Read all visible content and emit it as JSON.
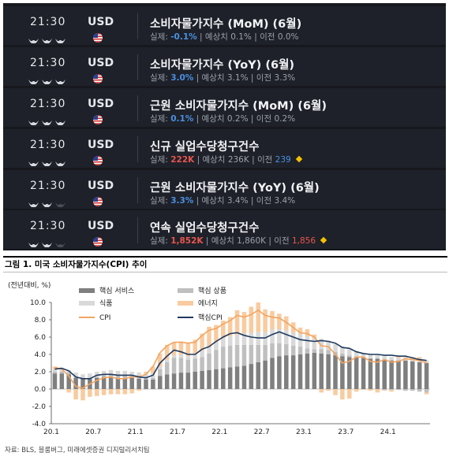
{
  "calendar": {
    "events": [
      {
        "time": "21:30",
        "currency": "USD",
        "title": "소비자물가지수 (MoM) (6월)",
        "impact": 3,
        "actual_label": "실제:",
        "actual": "-0.1%",
        "actual_color": "#4a90e2",
        "forecast_label": "| 예상치",
        "forecast": "0.1%",
        "previous_label": "| 이전",
        "previous": "0.0%",
        "previous_color": "#9aa0aa",
        "diamond": false
      },
      {
        "time": "21:30",
        "currency": "USD",
        "title": "소비자물가지수 (YoY) (6월)",
        "impact": 3,
        "actual_label": "실제:",
        "actual": "3.0%",
        "actual_color": "#4a90e2",
        "forecast_label": "| 예상치",
        "forecast": "3.1%",
        "previous_label": "| 이전",
        "previous": "3.3%",
        "previous_color": "#9aa0aa",
        "diamond": false
      },
      {
        "time": "21:30",
        "currency": "USD",
        "title": "근원 소비자물가지수 (MoM) (6월)",
        "impact": 3,
        "actual_label": "실제:",
        "actual": "0.1%",
        "actual_color": "#4a90e2",
        "forecast_label": "| 예상치",
        "forecast": "0.2%",
        "previous_label": "| 이전",
        "previous": "0.2%",
        "previous_color": "#9aa0aa",
        "diamond": false
      },
      {
        "time": "21:30",
        "currency": "USD",
        "title": "신규 실업수당청구건수",
        "impact": 3,
        "actual_label": "실제:",
        "actual": "222K",
        "actual_color": "#e8554e",
        "forecast_label": "| 예상치",
        "forecast": "236K",
        "previous_label": "| 이전",
        "previous": "239",
        "previous_color": "#4a90e2",
        "diamond": true
      },
      {
        "time": "21:30",
        "currency": "USD",
        "title": "근원 소비자물가지수 (YoY) (6월)",
        "impact": 2,
        "actual_label": "실제:",
        "actual": "3.3%",
        "actual_color": "#4a90e2",
        "forecast_label": "| 예상치",
        "forecast": "3.4%",
        "previous_label": "| 이전",
        "previous": "3.4%",
        "previous_color": "#9aa0aa",
        "diamond": false
      },
      {
        "time": "21:30",
        "currency": "USD",
        "title": "연속 실업수당청구건수",
        "impact": 2,
        "actual_label": "실제:",
        "actual": "1,852K",
        "actual_color": "#e8554e",
        "forecast_label": "| 예상치",
        "forecast": "1,860K",
        "previous_label": "| 이전",
        "previous": "1,856",
        "previous_color": "#e8554e",
        "diamond": true
      }
    ]
  },
  "figure": {
    "title": "그림 1. 미국 소비자물가지수(CPI) 추이",
    "source": "자료: BLS, 블룸버그, 미래에셋증권 디지털리서치팀"
  },
  "chart_data": {
    "type": "bar",
    "unit_label": "(전년대비, %)",
    "ylim": [
      -4.0,
      10.0
    ],
    "yticks": [
      "10.0",
      "8.0",
      "6.0",
      "4.0",
      "2.0",
      "0.0",
      "-2.0",
      "-4.0"
    ],
    "xticks": [
      "20.1",
      "20.7",
      "21.1",
      "21.7",
      "22.1",
      "22.7",
      "23.1",
      "23.7",
      "24.1"
    ],
    "legend": [
      {
        "name": "핵심 서비스",
        "color": "#7f7f7f",
        "kind": "bar"
      },
      {
        "name": "핵심 상품",
        "color": "#bfbfbf",
        "kind": "bar"
      },
      {
        "name": "식품",
        "color": "#d9d9d9",
        "kind": "bar"
      },
      {
        "name": "에너지",
        "color": "#f8cba0",
        "kind": "bar"
      },
      {
        "name": "CPI",
        "color": "#f4a460",
        "kind": "line"
      },
      {
        "name": "핵심CPI",
        "color": "#1f3a5f",
        "kind": "line"
      }
    ],
    "months": [
      "20.1",
      "20.2",
      "20.3",
      "20.4",
      "20.5",
      "20.6",
      "20.7",
      "20.8",
      "20.9",
      "20.10",
      "20.11",
      "20.12",
      "21.1",
      "21.2",
      "21.3",
      "21.4",
      "21.5",
      "21.6",
      "21.7",
      "21.8",
      "21.9",
      "21.10",
      "21.11",
      "21.12",
      "22.1",
      "22.2",
      "22.3",
      "22.4",
      "22.5",
      "22.6",
      "22.7",
      "22.8",
      "22.9",
      "22.10",
      "22.11",
      "22.12",
      "23.1",
      "23.2",
      "23.3",
      "23.4",
      "23.5",
      "23.6",
      "23.7",
      "23.8",
      "23.9",
      "23.10",
      "23.11",
      "23.12",
      "24.1",
      "24.2",
      "24.3",
      "24.4",
      "24.5",
      "24.6"
    ],
    "series": [
      {
        "name": "핵심 서비스",
        "values": [
          1.8,
          1.8,
          1.7,
          1.3,
          1.2,
          1.2,
          1.3,
          1.4,
          1.4,
          1.3,
          1.3,
          1.3,
          1.2,
          1.1,
          1.1,
          1.5,
          1.7,
          1.8,
          1.9,
          1.9,
          2.0,
          2.1,
          2.2,
          2.3,
          2.4,
          2.5,
          2.6,
          2.7,
          2.9,
          3.1,
          3.3,
          3.6,
          3.8,
          3.9,
          3.9,
          4.0,
          4.1,
          4.2,
          4.1,
          4.0,
          3.9,
          3.8,
          3.7,
          3.7,
          3.6,
          3.5,
          3.5,
          3.4,
          3.3,
          3.3,
          3.3,
          3.2,
          3.1,
          3.0
        ]
      },
      {
        "name": "핵심 상품",
        "values": [
          0.2,
          0.2,
          0.2,
          0.1,
          0.0,
          0.0,
          0.1,
          0.2,
          0.3,
          0.3,
          0.3,
          0.2,
          0.2,
          0.2,
          0.2,
          0.8,
          1.4,
          1.8,
          1.7,
          1.5,
          1.5,
          1.6,
          1.9,
          2.2,
          2.5,
          2.5,
          2.5,
          2.4,
          2.2,
          2.0,
          1.8,
          1.7,
          1.5,
          1.3,
          1.1,
          0.9,
          0.6,
          0.4,
          0.5,
          0.5,
          0.4,
          0.3,
          0.2,
          0.1,
          0.0,
          0.0,
          0.0,
          -0.1,
          -0.1,
          -0.1,
          -0.2,
          -0.2,
          -0.3,
          -0.4
        ]
      },
      {
        "name": "식품",
        "values": [
          0.3,
          0.3,
          0.3,
          0.5,
          0.5,
          0.6,
          0.6,
          0.5,
          0.5,
          0.5,
          0.5,
          0.5,
          0.5,
          0.5,
          0.5,
          0.3,
          0.3,
          0.3,
          0.4,
          0.4,
          0.6,
          0.7,
          0.8,
          0.9,
          1.0,
          1.1,
          1.2,
          1.3,
          1.4,
          1.5,
          1.5,
          1.6,
          1.6,
          1.6,
          1.5,
          1.5,
          1.4,
          1.3,
          1.2,
          1.1,
          0.9,
          0.8,
          0.7,
          0.6,
          0.5,
          0.5,
          0.4,
          0.4,
          0.4,
          0.3,
          0.3,
          0.3,
          0.3,
          0.3
        ]
      },
      {
        "name": "에너지",
        "values": [
          0.3,
          0.0,
          -0.4,
          -1.2,
          -1.3,
          -0.9,
          -0.8,
          -0.7,
          -0.6,
          -0.6,
          -0.6,
          -0.5,
          -0.2,
          0.2,
          0.8,
          1.5,
          1.7,
          1.5,
          1.5,
          1.5,
          1.6,
          2.0,
          2.3,
          2.0,
          2.0,
          2.2,
          2.8,
          2.5,
          3.0,
          3.4,
          2.6,
          2.1,
          1.8,
          1.6,
          1.2,
          0.7,
          0.8,
          0.4,
          -0.4,
          -0.2,
          -0.7,
          -1.2,
          -1.1,
          -0.3,
          -0.1,
          -0.2,
          -0.4,
          -0.1,
          -0.2,
          0.2,
          0.1,
          0.2,
          0.3,
          -0.2
        ]
      },
      {
        "name": "CPI",
        "values": [
          2.5,
          2.3,
          1.5,
          0.3,
          0.1,
          0.6,
          1.0,
          1.3,
          1.4,
          1.2,
          1.2,
          1.4,
          1.4,
          1.7,
          2.6,
          4.2,
          5.0,
          5.4,
          5.4,
          5.3,
          5.4,
          6.2,
          6.8,
          7.0,
          7.5,
          7.9,
          8.5,
          8.3,
          8.6,
          9.1,
          8.5,
          8.3,
          8.2,
          7.7,
          7.1,
          6.5,
          6.4,
          6.0,
          5.0,
          4.9,
          4.0,
          3.0,
          3.2,
          3.7,
          3.7,
          3.2,
          3.1,
          3.4,
          3.1,
          3.2,
          3.5,
          3.4,
          3.3,
          3.0
        ]
      },
      {
        "name": "핵심CPI",
        "values": [
          2.3,
          2.4,
          2.1,
          1.4,
          1.2,
          1.2,
          1.6,
          1.7,
          1.7,
          1.6,
          1.6,
          1.6,
          1.4,
          1.3,
          1.6,
          3.0,
          3.8,
          4.5,
          4.3,
          4.0,
          4.0,
          4.6,
          4.9,
          5.5,
          6.0,
          6.4,
          6.5,
          6.2,
          6.0,
          5.9,
          5.9,
          6.3,
          6.6,
          6.3,
          6.0,
          5.7,
          5.6,
          5.5,
          5.6,
          5.5,
          5.3,
          4.8,
          4.7,
          4.3,
          4.1,
          4.0,
          4.0,
          3.9,
          3.9,
          3.8,
          3.8,
          3.6,
          3.4,
          3.3
        ]
      }
    ]
  }
}
